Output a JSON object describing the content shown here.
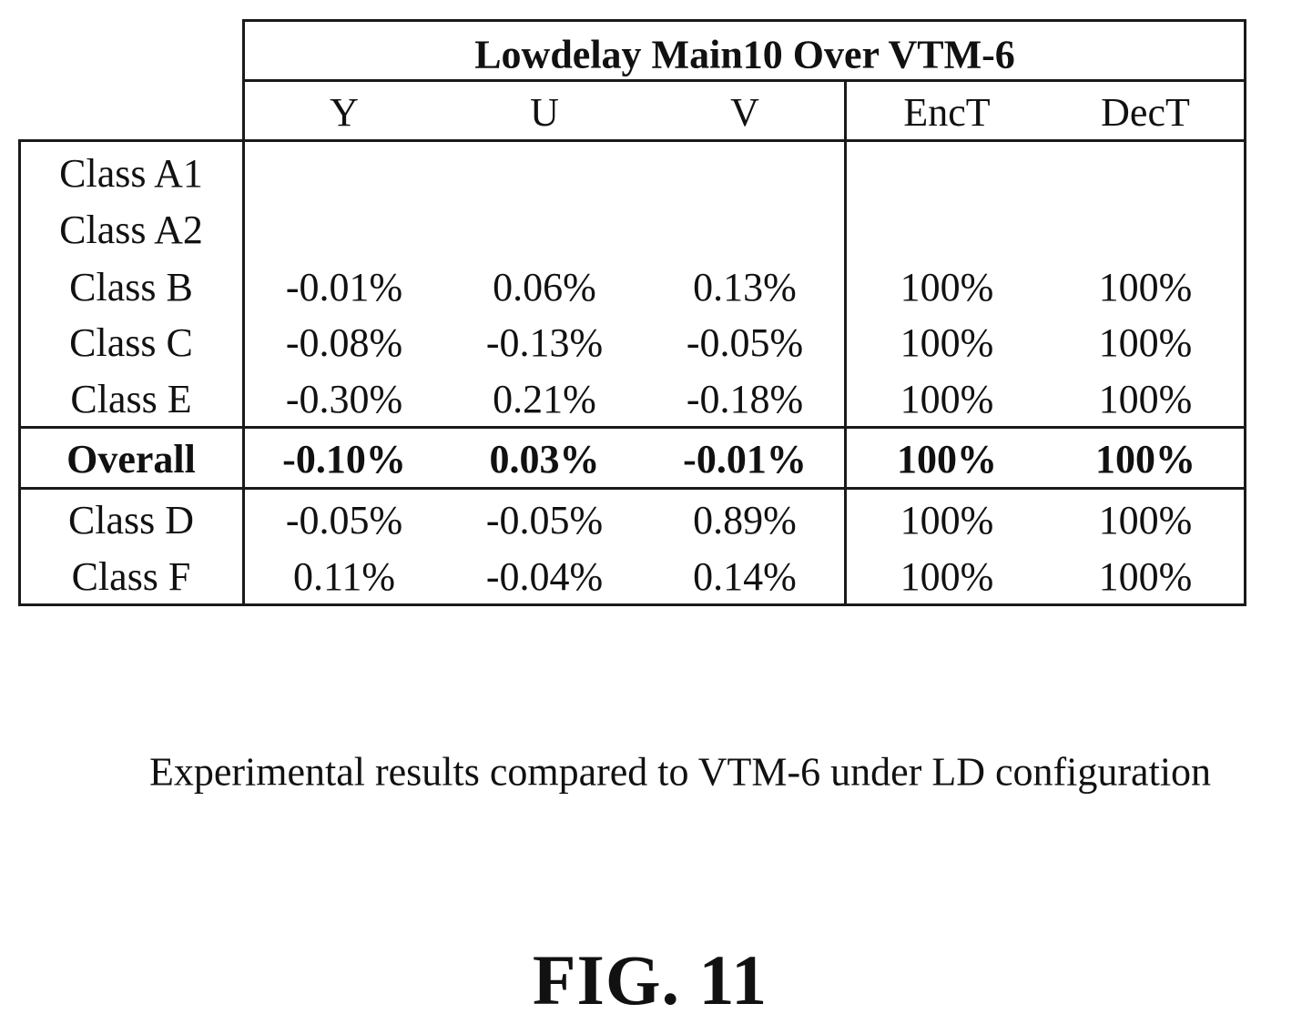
{
  "table": {
    "group_header": "Lowdelay Main10 Over VTM-6",
    "columns": [
      "Y",
      "U",
      "V",
      "EncT",
      "DecT"
    ],
    "rows": [
      {
        "label": "Class A1",
        "values": [
          "",
          "",
          "",
          "",
          ""
        ],
        "bold": false
      },
      {
        "label": "Class A2",
        "values": [
          "",
          "",
          "",
          "",
          ""
        ],
        "bold": false
      },
      {
        "label": "Class B",
        "values": [
          "-0.01%",
          "0.06%",
          "0.13%",
          "100%",
          "100%"
        ],
        "bold": false
      },
      {
        "label": "Class C",
        "values": [
          "-0.08%",
          "-0.13%",
          "-0.05%",
          "100%",
          "100%"
        ],
        "bold": false
      },
      {
        "label": "Class E",
        "values": [
          "-0.30%",
          "0.21%",
          "-0.18%",
          "100%",
          "100%"
        ],
        "bold": false
      },
      {
        "label": "Overall",
        "values": [
          "-0.10%",
          "0.03%",
          "-0.01%",
          "100%",
          "100%"
        ],
        "bold": true
      },
      {
        "label": "Class D",
        "values": [
          "-0.05%",
          "-0.05%",
          "0.89%",
          "100%",
          "100%"
        ],
        "bold": false
      },
      {
        "label": "Class F",
        "values": [
          "0.11%",
          "-0.04%",
          "0.14%",
          "100%",
          "100%"
        ],
        "bold": false
      }
    ]
  },
  "caption": "Experimental results compared to VTM-6 under LD configuration",
  "figure_label": "FIG. 11"
}
